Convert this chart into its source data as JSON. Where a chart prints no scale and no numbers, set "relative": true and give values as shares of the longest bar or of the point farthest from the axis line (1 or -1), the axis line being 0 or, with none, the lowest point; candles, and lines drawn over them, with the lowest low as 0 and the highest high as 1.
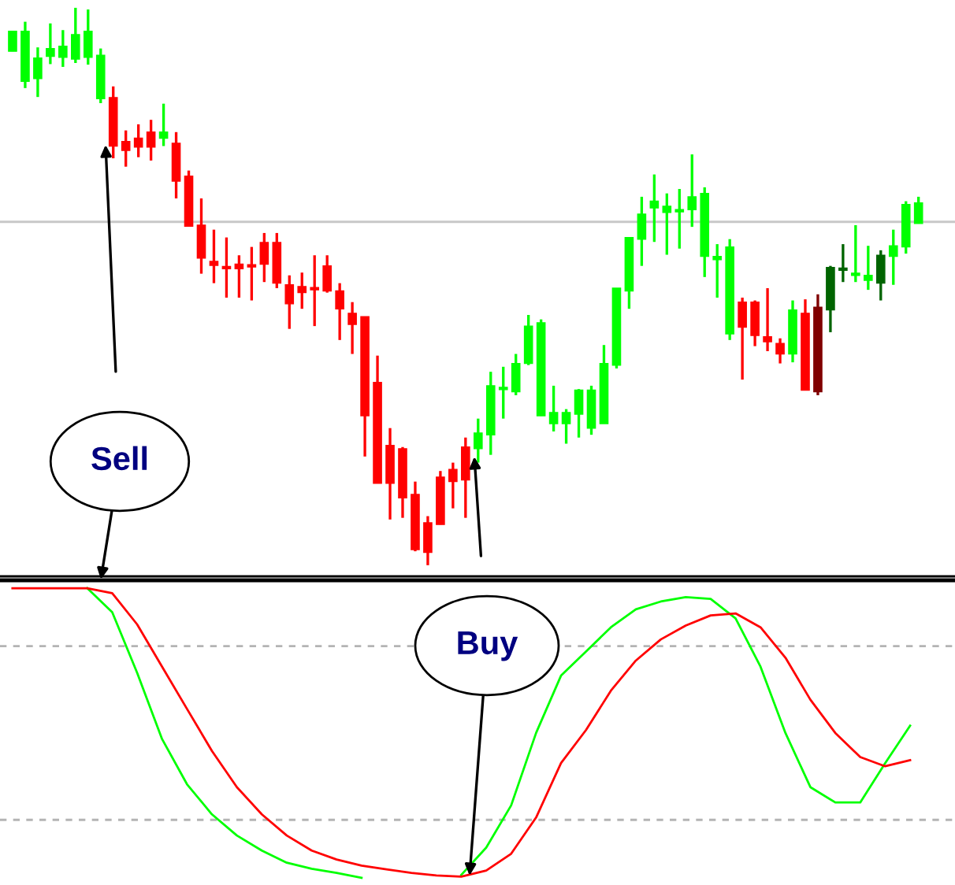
{
  "chart_data": [
    {
      "type": "candlestick",
      "relative": true,
      "categories": [
        null,
        null,
        null,
        null,
        null,
        null,
        null,
        null,
        null,
        null,
        null,
        null,
        null,
        null,
        null,
        null,
        null,
        null,
        null,
        null,
        null,
        null,
        null,
        null,
        null,
        null,
        null,
        null,
        null,
        null,
        null,
        null,
        null,
        null,
        null,
        null,
        null,
        null,
        null,
        null,
        null,
        null,
        null,
        null,
        null,
        null,
        null,
        null,
        null,
        null,
        null,
        null,
        null,
        null,
        null,
        null,
        null,
        null,
        null,
        null,
        null,
        null,
        null,
        null,
        null,
        null,
        null,
        null,
        null,
        null,
        null,
        null,
        null
      ],
      "ohlc": [
        [
          0.922,
          0.958,
          0.922,
          0.958
        ],
        [
          0.868,
          0.975,
          0.856,
          0.958
        ],
        [
          0.873,
          0.929,
          0.84,
          0.91
        ],
        [
          0.913,
          0.972,
          0.899,
          0.927
        ],
        [
          0.911,
          0.96,
          0.894,
          0.931
        ],
        [
          0.908,
          1.0,
          0.901,
          0.952
        ],
        [
          0.911,
          0.997,
          0.898,
          0.958
        ],
        [
          0.837,
          0.927,
          0.829,
          0.915
        ],
        [
          0.839,
          0.859,
          0.73,
          0.752
        ],
        [
          0.76,
          0.78,
          0.715,
          0.744
        ],
        [
          0.766,
          0.791,
          0.732,
          0.75
        ],
        [
          0.777,
          0.799,
          0.726,
          0.75
        ],
        [
          0.766,
          0.828,
          0.752,
          0.777
        ],
        [
          0.757,
          0.777,
          0.658,
          0.689
        ],
        [
          0.698,
          0.708,
          0.608,
          0.608
        ],
        [
          0.61,
          0.658,
          0.523,
          0.551
        ],
        [
          0.545,
          0.602,
          0.506,
          0.538
        ],
        [
          0.534,
          0.588,
          0.48,
          0.532
        ],
        [
          0.54,
          0.556,
          0.48,
          0.532
        ],
        [
          0.537,
          0.571,
          0.475,
          0.535
        ],
        [
          0.579,
          0.596,
          0.508,
          0.54
        ],
        [
          0.579,
          0.596,
          0.497,
          0.506
        ],
        [
          0.503,
          0.52,
          0.424,
          0.469
        ],
        [
          0.5,
          0.525,
          0.46,
          0.489
        ],
        [
          0.497,
          0.556,
          0.429,
          0.494
        ],
        [
          0.537,
          0.556,
          0.489,
          0.492
        ],
        [
          0.492,
          0.506,
          0.404,
          0.46
        ],
        [
          0.452,
          0.472,
          0.379,
          0.432
        ],
        [
          0.446,
          0.446,
          0.195,
          0.268
        ],
        [
          0.328,
          0.376,
          0.147,
          0.147
        ],
        [
          0.215,
          0.246,
          0.082,
          0.147
        ],
        [
          0.209,
          0.212,
          0.085,
          0.121
        ],
        [
          0.127,
          0.15,
          0.025,
          0.028
        ],
        [
          0.076,
          0.088,
          0.0,
          0.023
        ],
        [
          0.158,
          0.169,
          0.073,
          0.073
        ],
        [
          0.172,
          0.184,
          0.102,
          0.15
        ],
        [
          0.212,
          0.229,
          0.085,
          0.153
        ],
        [
          0.209,
          0.263,
          0.184,
          0.237
        ],
        [
          0.234,
          0.347,
          0.198,
          0.322
        ],
        [
          0.315,
          0.356,
          0.263,
          0.316
        ],
        [
          0.311,
          0.379,
          0.305,
          0.362
        ],
        [
          0.362,
          0.449,
          0.359,
          0.429
        ],
        [
          0.268,
          0.441,
          0.268,
          0.435
        ],
        [
          0.254,
          0.322,
          0.24,
          0.274
        ],
        [
          0.254,
          0.28,
          0.218,
          0.274
        ],
        [
          0.271,
          0.316,
          0.229,
          0.314
        ],
        [
          0.246,
          0.322,
          0.234,
          0.314
        ],
        [
          0.254,
          0.395,
          0.254,
          0.362
        ],
        [
          0.359,
          0.497,
          0.353,
          0.497
        ],
        [
          0.492,
          0.588,
          0.46,
          0.588
        ],
        [
          0.585,
          0.661,
          0.537,
          0.63
        ],
        [
          0.641,
          0.701,
          0.58,
          0.653
        ],
        [
          0.633,
          0.667,
          0.557,
          0.644
        ],
        [
          0.634,
          0.675,
          0.568,
          0.636
        ],
        [
          0.638,
          0.737,
          0.607,
          0.661
        ],
        [
          0.554,
          0.678,
          0.517,
          0.667
        ],
        [
          0.548,
          0.576,
          0.48,
          0.554
        ],
        [
          0.415,
          0.585,
          0.404,
          0.571
        ],
        [
          0.472,
          0.48,
          0.333,
          0.427
        ],
        [
          0.472,
          0.475,
          0.393,
          0.412
        ],
        [
          0.41,
          0.497,
          0.384,
          0.401
        ],
        [
          0.398,
          0.407,
          0.362,
          0.379
        ],
        [
          0.379,
          0.475,
          0.364,
          0.458
        ],
        [
          0.452,
          0.477,
          0.314,
          0.314
        ],
        [
          0.463,
          0.486,
          0.305,
          0.311
        ],
        [
          0.458,
          0.537,
          0.418,
          0.534
        ],
        [
          0.529,
          0.576,
          0.508,
          0.531
        ],
        [
          0.52,
          0.61,
          0.508,
          0.523
        ],
        [
          0.511,
          0.573,
          0.494,
          0.52
        ],
        [
          0.506,
          0.565,
          0.475,
          0.556
        ],
        [
          0.554,
          0.602,
          0.503,
          0.573
        ],
        [
          0.571,
          0.653,
          0.559,
          0.647
        ],
        [
          0.613,
          0.661,
          0.613,
          0.65
        ]
      ],
      "colors": [
        "#00ff00",
        "#00ff00",
        "#00ff00",
        "#00ff00",
        "#00ff00",
        "#00ff00",
        "#00ff00",
        "#00ff00",
        "#ff0000",
        "#ff0000",
        "#ff0000",
        "#ff0000",
        "#00ff00",
        "#ff0000",
        "#ff0000",
        "#ff0000",
        "#ff0000",
        "#ff0000",
        "#ff0000",
        "#ff0000",
        "#ff0000",
        "#ff0000",
        "#ff0000",
        "#ff0000",
        "#ff0000",
        "#ff0000",
        "#ff0000",
        "#ff0000",
        "#ff0000",
        "#ff0000",
        "#ff0000",
        "#ff0000",
        "#ff0000",
        "#ff0000",
        "#ff0000",
        "#ff0000",
        "#ff0000",
        "#00ff00",
        "#00ff00",
        "#00ff00",
        "#00ff00",
        "#00ff00",
        "#00ff00",
        "#00ff00",
        "#00ff00",
        "#00ff00",
        "#00ff00",
        "#00ff00",
        "#00ff00",
        "#00ff00",
        "#00ff00",
        "#00ff00",
        "#00ff00",
        "#00ff00",
        "#00ff00",
        "#00ff00",
        "#00ff00",
        "#00ff00",
        "#ff0000",
        "#ff0000",
        "#ff0000",
        "#ff0000",
        "#00ff00",
        "#ff0000",
        "#800000",
        "#006400",
        "#006400",
        "#00ff00",
        "#00ff00",
        "#006400",
        "#00ff00",
        "#00ff00",
        "#00ff00"
      ],
      "ref_lines": [
        {
          "axis": "y",
          "value": 0.616,
          "color": "#c8c8c8",
          "line_style": "solid"
        }
      ],
      "annotations": [
        "Sell"
      ]
    },
    {
      "type": "line",
      "relative": true,
      "marker": "none",
      "line_style": "solid",
      "categories": [
        null,
        null,
        null,
        null,
        null,
        null,
        null,
        null,
        null,
        null,
        null,
        null,
        null,
        null,
        null,
        null,
        null,
        null,
        null,
        null,
        null,
        null,
        null,
        null,
        null,
        null,
        null,
        null,
        null,
        null,
        null,
        null,
        null,
        null,
        null,
        null,
        null
      ],
      "series": [
        {
          "color": "#00ff00",
          "values": [
            null,
            null,
            null,
            1,
            0.917,
            0.708,
            0.479,
            0.323,
            0.219,
            0.146,
            0.094,
            0.052,
            0.031,
            0.017,
            0.0,
            null,
            null,
            null,
            0.01,
            0.104,
            0.25,
            0.5,
            0.698,
            0.781,
            0.865,
            0.927,
            0.954,
            0.969,
            0.963,
            0.896,
            0.729,
            0.5,
            0.313,
            0.26,
            0.26,
            0.396,
            0.525
          ]
        },
        {
          "color": "#ff0000",
          "values": [
            1,
            1,
            1,
            1,
            0.983,
            0.875,
            0.729,
            0.583,
            0.438,
            0.313,
            0.219,
            0.146,
            0.094,
            0.063,
            0.042,
            0.029,
            0.017,
            0.008,
            0.004,
            0.025,
            0.083,
            0.208,
            0.396,
            0.51,
            0.646,
            0.75,
            0.823,
            0.871,
            0.906,
            0.913,
            0.865,
            0.76,
            0.615,
            0.5,
            0.417,
            0.385,
            0.406
          ]
        }
      ],
      "ref_lines": [
        {
          "axis": "y",
          "value": 0.8,
          "color": "#b4b4b4",
          "line_style": "dashed"
        },
        {
          "axis": "y",
          "value": 0.2,
          "color": "#b4b4b4",
          "line_style": "dashed"
        }
      ],
      "annotations": [
        "Buy"
      ]
    }
  ]
}
